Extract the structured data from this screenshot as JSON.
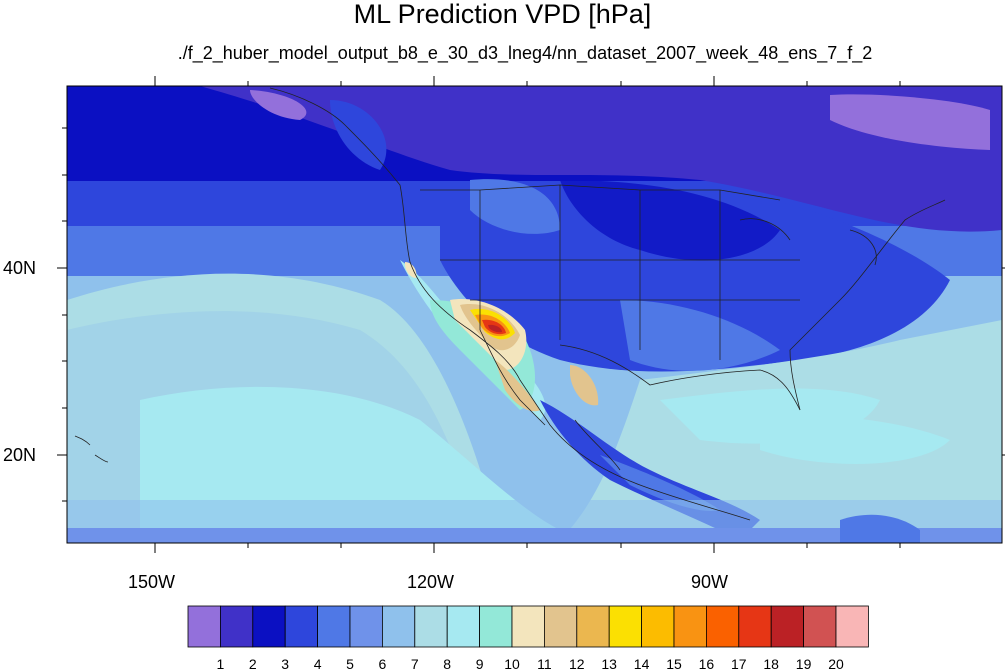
{
  "title": "ML Prediction VPD [hPa]",
  "subtitle": "./f_2_huber_model_output_b8_e_30_d3_lneg4/nn_dataset_2007_week_48_ens_7_f_2",
  "map": {
    "lon_labels": [
      "150W",
      "120W",
      "90W"
    ],
    "lat_labels": [
      "40N",
      "20N"
    ],
    "lon_range": [
      -160,
      -62
    ],
    "lat_range": [
      10,
      59
    ]
  },
  "colorbar": {
    "labels": [
      "1",
      "2",
      "3",
      "4",
      "5",
      "6",
      "7",
      "8",
      "9",
      "10",
      "11",
      "12",
      "13",
      "14",
      "15",
      "16",
      "17",
      "18",
      "19",
      "20"
    ],
    "colors": [
      "#9370db",
      "#4031c8",
      "#0b10c2",
      "#2e46dc",
      "#4f78e6",
      "#6f92ea",
      "#8fc1ec",
      "#acdde6",
      "#a6e9f1",
      "#93e8d8",
      "#f3e5bd",
      "#e2c48e",
      "#ebb74f",
      "#fbe002",
      "#fcbc00",
      "#f99312",
      "#fa6100",
      "#e63615",
      "#bb2125",
      "#d15252",
      "#f9b6b6"
    ]
  }
}
